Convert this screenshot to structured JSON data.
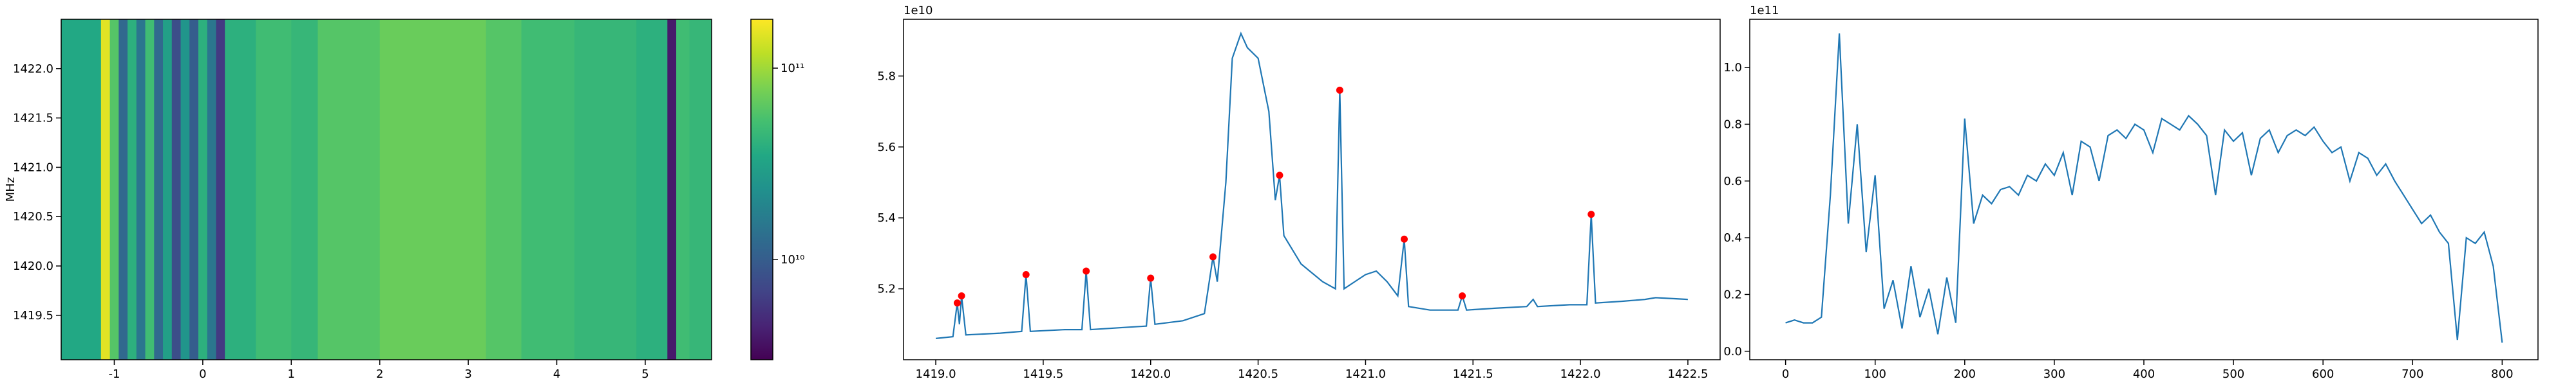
{
  "chart_data": [
    {
      "type": "heatmap",
      "ylabel": "MHz",
      "x_edges": [
        -1.6,
        -1.15,
        -1.05,
        -0.95,
        -0.85,
        -0.75,
        -0.65,
        -0.55,
        -0.45,
        -0.35,
        -0.25,
        -0.15,
        -0.05,
        0.05,
        0.15,
        0.25,
        0.6,
        1.0,
        1.3,
        2.0,
        3.2,
        3.6,
        4.2,
        4.9,
        5.25,
        5.35,
        5.5,
        5.75
      ],
      "values": [
        35000000000,
        150000000000,
        60000000000,
        12000000000,
        40000000000,
        15000000000,
        50000000000,
        12000000000,
        30000000000,
        8000000000,
        25000000000,
        10000000000,
        40000000000,
        15000000000,
        6000000000,
        40000000000,
        50000000000,
        45000000000,
        60000000000,
        70000000000,
        60000000000,
        50000000000,
        45000000000,
        40000000000,
        4000000000,
        50000000000,
        45000000000
      ],
      "xlim": [
        -1.6,
        5.75
      ],
      "ylim": [
        1419.05,
        1422.5
      ],
      "xticks": [
        -1,
        0,
        1,
        2,
        3,
        4,
        5
      ],
      "yticks": [
        1419.5,
        {
          "value": 1420,
          "label": "1420.0"
        },
        1420.5,
        {
          "value": 1421,
          "label": "1421.0"
        },
        1421.5,
        {
          "value": 1422,
          "label": "1422.0"
        }
      ],
      "colormap": "viridis",
      "color_scale": "log",
      "clim": [
        3000000000,
        180000000000
      ],
      "cticks": [
        {
          "value": 10000000000,
          "label": "10¹⁰"
        },
        {
          "value": 100000000000,
          "label": "10¹¹"
        }
      ]
    },
    {
      "type": "line",
      "y_offset_label": "1e10",
      "xlim": [
        1418.85,
        1422.65
      ],
      "ylim": [
        5.0,
        5.96
      ],
      "xticks": [
        {
          "value": 1419,
          "label": "1419.0"
        },
        1419.5,
        {
          "value": 1420,
          "label": "1420.0"
        },
        1420.5,
        {
          "value": 1421,
          "label": "1421.0"
        },
        1421.5,
        {
          "value": 1422,
          "label": "1422.0"
        },
        1422.5
      ],
      "yticks": [
        5.2,
        5.4,
        5.6,
        5.8
      ],
      "series": [
        {
          "color": "#1f77b4",
          "style": "line",
          "x": [
            1419.0,
            1419.08,
            1419.1,
            1419.11,
            1419.12,
            1419.14,
            1419.3,
            1419.4,
            1419.42,
            1419.44,
            1419.6,
            1419.68,
            1419.7,
            1419.72,
            1419.85,
            1419.98,
            1420.0,
            1420.02,
            1420.15,
            1420.25,
            1420.29,
            1420.31,
            1420.35,
            1420.38,
            1420.42,
            1420.45,
            1420.5,
            1420.55,
            1420.58,
            1420.6,
            1420.62,
            1420.7,
            1420.8,
            1420.86,
            1420.88,
            1420.9,
            1420.95,
            1421.0,
            1421.05,
            1421.1,
            1421.15,
            1421.18,
            1421.2,
            1421.3,
            1421.43,
            1421.45,
            1421.47,
            1421.6,
            1421.75,
            1421.78,
            1421.8,
            1421.95,
            1422.03,
            1422.05,
            1422.07,
            1422.2,
            1422.3,
            1422.35,
            1422.5
          ],
          "values": [
            5.06,
            5.065,
            5.16,
            5.1,
            5.18,
            5.07,
            5.075,
            5.08,
            5.24,
            5.08,
            5.085,
            5.085,
            5.25,
            5.085,
            5.09,
            5.095,
            5.23,
            5.1,
            5.11,
            5.13,
            5.29,
            5.22,
            5.5,
            5.85,
            5.92,
            5.88,
            5.85,
            5.7,
            5.45,
            5.52,
            5.35,
            5.27,
            5.22,
            5.2,
            5.76,
            5.2,
            5.22,
            5.24,
            5.25,
            5.22,
            5.18,
            5.34,
            5.15,
            5.14,
            5.14,
            5.18,
            5.14,
            5.145,
            5.15,
            5.17,
            5.15,
            5.155,
            5.155,
            5.41,
            5.16,
            5.165,
            5.17,
            5.175,
            5.17
          ]
        },
        {
          "color": "red",
          "style": "markers",
          "x": [
            1419.1,
            1419.12,
            1419.42,
            1419.7,
            1420.0,
            1420.29,
            1420.6,
            1420.88,
            1421.18,
            1421.45,
            1422.05
          ],
          "values": [
            5.16,
            5.18,
            5.24,
            5.25,
            5.23,
            5.29,
            5.52,
            5.76,
            5.34,
            5.18,
            5.41
          ]
        }
      ]
    },
    {
      "type": "line",
      "y_offset_label": "1e11",
      "xlim": [
        -40,
        840
      ],
      "ylim": [
        -0.03,
        1.17
      ],
      "xticks": [
        0,
        100,
        200,
        300,
        400,
        500,
        600,
        700,
        800
      ],
      "yticks": [
        {
          "value": 0,
          "label": "0.0"
        },
        0.2,
        0.4,
        0.6,
        0.8,
        {
          "value": 1,
          "label": "1.0"
        }
      ],
      "series": [
        {
          "color": "#1f77b4",
          "style": "line",
          "x": [
            0,
            10,
            20,
            30,
            40,
            50,
            60,
            70,
            80,
            90,
            100,
            110,
            120,
            130,
            140,
            150,
            160,
            170,
            180,
            190,
            200,
            210,
            220,
            230,
            240,
            250,
            260,
            270,
            280,
            290,
            300,
            310,
            320,
            330,
            340,
            350,
            360,
            370,
            380,
            390,
            400,
            410,
            420,
            430,
            440,
            450,
            460,
            470,
            480,
            490,
            500,
            510,
            520,
            530,
            540,
            550,
            560,
            570,
            580,
            590,
            600,
            610,
            620,
            630,
            640,
            650,
            660,
            670,
            680,
            690,
            700,
            710,
            720,
            730,
            740,
            750,
            760,
            770,
            780,
            790,
            800
          ],
          "values": [
            0.1,
            0.11,
            0.1,
            0.1,
            0.12,
            0.55,
            1.12,
            0.45,
            0.8,
            0.35,
            0.62,
            0.15,
            0.25,
            0.08,
            0.3,
            0.12,
            0.22,
            0.06,
            0.26,
            0.1,
            0.82,
            0.45,
            0.55,
            0.52,
            0.57,
            0.58,
            0.55,
            0.62,
            0.6,
            0.66,
            0.62,
            0.7,
            0.55,
            0.74,
            0.72,
            0.6,
            0.76,
            0.78,
            0.75,
            0.8,
            0.78,
            0.7,
            0.82,
            0.8,
            0.78,
            0.83,
            0.8,
            0.76,
            0.55,
            0.78,
            0.74,
            0.77,
            0.62,
            0.75,
            0.78,
            0.7,
            0.76,
            0.78,
            0.76,
            0.79,
            0.74,
            0.7,
            0.72,
            0.6,
            0.7,
            0.68,
            0.62,
            0.66,
            0.6,
            0.55,
            0.5,
            0.45,
            0.48,
            0.42,
            0.38,
            0.04,
            0.4,
            0.38,
            0.42,
            0.3,
            0.03
          ]
        }
      ]
    }
  ]
}
